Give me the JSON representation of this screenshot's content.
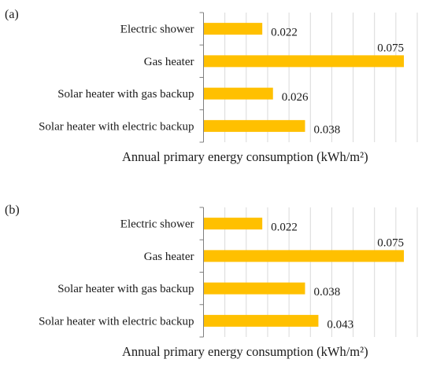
{
  "chart_data": [
    {
      "type": "bar",
      "orientation": "horizontal",
      "panel_label": "(a)",
      "categories": [
        "Electric shower",
        "Gas heater",
        "Solar heater with gas backup",
        "Solar heater with electric backup"
      ],
      "values": [
        0.022,
        0.075,
        0.026,
        0.038
      ],
      "value_labels": [
        "0.022",
        "0.075",
        "0.026",
        "0.038"
      ],
      "xlabel": "Annual primary energy consumption (kWh/m²)",
      "xlim": [
        0,
        0.08
      ],
      "grid": "vertical",
      "bar_color": "#FFC000"
    },
    {
      "type": "bar",
      "orientation": "horizontal",
      "panel_label": "(b)",
      "categories": [
        "Electric shower",
        "Gas heater",
        "Solar heater with gas backup",
        "Solar heater with electric backup"
      ],
      "values": [
        0.022,
        0.075,
        0.038,
        0.043
      ],
      "value_labels": [
        "0.022",
        "0.075",
        "0.038",
        "0.043"
      ],
      "xlabel": "Annual primary energy consumption (kWh/m²)",
      "xlim": [
        0,
        0.08
      ],
      "grid": "vertical",
      "bar_color": "#FFC000"
    }
  ]
}
